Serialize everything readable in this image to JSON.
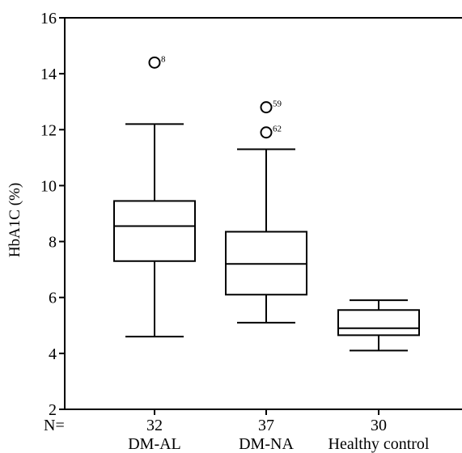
{
  "chart_data": {
    "type": "box",
    "ylabel": "HbA1C (%)",
    "ylim": [
      2,
      16
    ],
    "yticks": [
      2,
      4,
      6,
      8,
      10,
      12,
      14,
      16
    ],
    "n_label": "N=",
    "categories": [
      "DM-AL",
      "DM-NA",
      "Healthy control"
    ],
    "n": [
      "32",
      "37",
      "30"
    ],
    "boxes": [
      {
        "category": "DM-AL",
        "min": 4.6,
        "q1": 7.3,
        "median": 8.55,
        "q3": 9.45,
        "max": 12.2,
        "outliers": [
          {
            "value": 14.4,
            "label": "8"
          }
        ]
      },
      {
        "category": "DM-NA",
        "min": 5.1,
        "q1": 6.1,
        "median": 7.2,
        "q3": 8.35,
        "max": 11.3,
        "outliers": [
          {
            "value": 12.8,
            "label": "59"
          },
          {
            "value": 11.9,
            "label": "62"
          }
        ]
      },
      {
        "category": "Healthy control",
        "min": 4.1,
        "q1": 4.65,
        "median": 4.9,
        "q3": 5.55,
        "max": 5.9,
        "outliers": []
      }
    ]
  }
}
